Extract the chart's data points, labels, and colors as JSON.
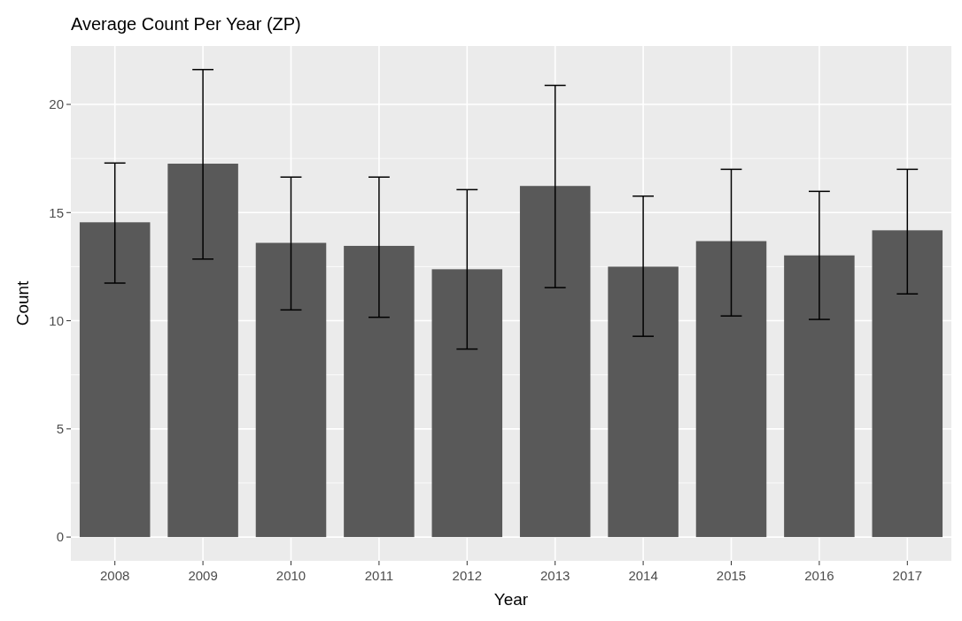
{
  "chart_data": {
    "type": "bar",
    "title": "Average Count Per Year (ZP)",
    "xlabel": "Year",
    "ylabel": "Count",
    "categories": [
      "2008",
      "2009",
      "2010",
      "2011",
      "2012",
      "2013",
      "2014",
      "2015",
      "2016",
      "2017"
    ],
    "values": [
      14.55,
      17.26,
      13.6,
      13.46,
      12.38,
      16.23,
      12.5,
      13.68,
      13.02,
      14.18
    ],
    "errors": [
      [
        11.74,
        17.29
      ],
      [
        12.85,
        21.61
      ],
      [
        10.5,
        16.64
      ],
      [
        10.16,
        16.64
      ],
      [
        8.69,
        16.06
      ],
      [
        11.53,
        20.88
      ],
      [
        9.28,
        15.76
      ],
      [
        10.22,
        17.0
      ],
      [
        10.06,
        15.98
      ],
      [
        11.24,
        17.0
      ]
    ],
    "color": "#595959",
    "ylim": [
      -1.1,
      22.7
    ],
    "yticks": [
      0,
      5,
      10,
      15,
      20
    ],
    "grid": true
  }
}
